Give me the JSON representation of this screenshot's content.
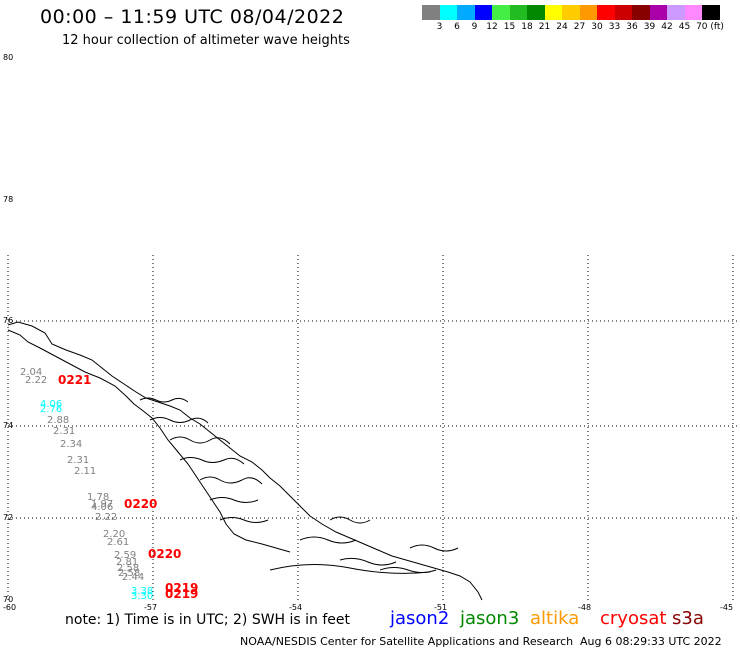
{
  "header": {
    "title": "00:00 – 11:59 UTC 08/04/2022",
    "subtitle": "12 hour collection of altimeter wave heights"
  },
  "color_scale": {
    "labels": [
      "3",
      "6",
      "9",
      "12",
      "15",
      "18",
      "21",
      "24",
      "27",
      "30",
      "33",
      "36",
      "39",
      "42",
      "45",
      "70 (ft)"
    ],
    "colors": [
      "#808080",
      "#00ffff",
      "#00aaff",
      "#0000ff",
      "#44ee44",
      "#22bb22",
      "#008800",
      "#ffff00",
      "#ffcc00",
      "#ff9900",
      "#ff0000",
      "#cc0000",
      "#880000",
      "#aa00aa",
      "#cc99ff",
      "#ff88ff",
      "#000000"
    ]
  },
  "axes": {
    "lat_labels": [
      "80",
      "78",
      "76",
      "74",
      "72",
      "70"
    ],
    "lon_labels": [
      "-60",
      "-57",
      "-54",
      "-51",
      "-48",
      "-45"
    ]
  },
  "tracks": [
    {
      "label": "0221",
      "color": "#ff0000"
    },
    {
      "label": "0220",
      "color": "#ff0000"
    },
    {
      "label": "0220",
      "color": "#ff0000"
    },
    {
      "label": "0219",
      "color": "#ff0000"
    },
    {
      "label": "0219",
      "color": "#ff0000"
    }
  ],
  "wave_heights": [
    {
      "value": "2.04",
      "color": "#808080"
    },
    {
      "value": "2.22",
      "color": "#808080"
    },
    {
      "value": "4.06",
      "color": "#00ffff"
    },
    {
      "value": "2.76",
      "color": "#00ffff"
    },
    {
      "value": "2.88",
      "color": "#808080"
    },
    {
      "value": "2.31",
      "color": "#808080"
    },
    {
      "value": "2.34",
      "color": "#808080"
    },
    {
      "value": "2.31",
      "color": "#808080"
    },
    {
      "value": "2.11",
      "color": "#808080"
    },
    {
      "value": "1.78",
      "color": "#808080"
    },
    {
      "value": "1.97",
      "color": "#808080"
    },
    {
      "value": "4.06",
      "color": "#808080"
    },
    {
      "value": "2.22",
      "color": "#808080"
    },
    {
      "value": "2.20",
      "color": "#808080"
    },
    {
      "value": "2.61",
      "color": "#808080"
    },
    {
      "value": "2.59",
      "color": "#808080"
    },
    {
      "value": "2.81",
      "color": "#808080"
    },
    {
      "value": "2.58",
      "color": "#808080"
    },
    {
      "value": "2.58",
      "color": "#808080"
    },
    {
      "value": "2.44",
      "color": "#808080"
    },
    {
      "value": "3.38",
      "color": "#00ffff"
    },
    {
      "value": "3.30",
      "color": "#00ffff"
    }
  ],
  "footer": {
    "note": "note:  1) Time is in UTC;  2) SWH is in feet",
    "satellites": [
      {
        "name": "jason2",
        "color": "#0000ff"
      },
      {
        "name": "jason3",
        "color": "#008800"
      },
      {
        "name": "altika",
        "color": "#ff9900"
      },
      {
        "name": "cryosat",
        "color": "#ff0000"
      },
      {
        "name": "s3a",
        "color": "#880000"
      }
    ],
    "credit": "NOAA/NESDIS Center for Satellite Applications and Research",
    "timestamp": "Aug  6 08:29:33 UTC 2022"
  }
}
